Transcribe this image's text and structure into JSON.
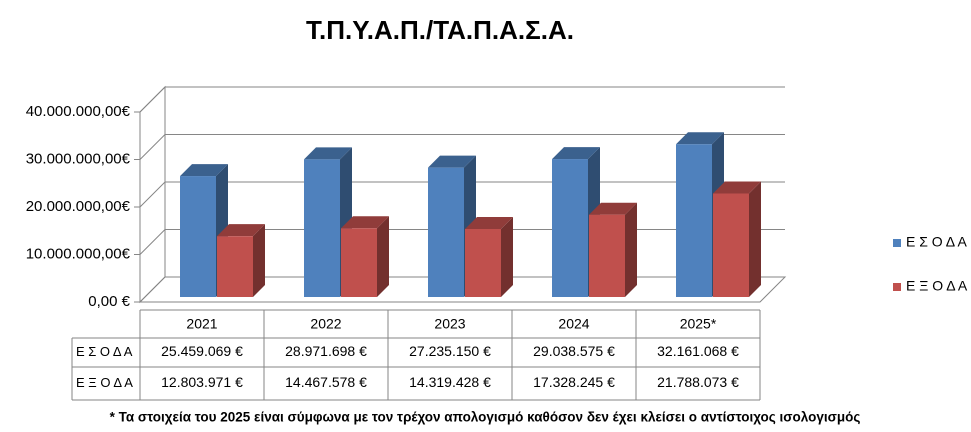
{
  "chart_data": {
    "type": "bar3d",
    "title": "Τ.Π.Υ.Α.Π./ΤΑ.Π.Α.Σ.Α.",
    "categories": [
      "2021",
      "2022",
      "2023",
      "2024",
      "2025*"
    ],
    "series": [
      {
        "name": "Ε Σ Ο Δ Α",
        "color": "#4f81bd",
        "values": [
          25459069,
          28971698,
          27235150,
          29038575,
          32161068
        ],
        "value_labels": [
          "25.459.069 €",
          "28.971.698 €",
          "27.235.150 €",
          "29.038.575 €",
          "32.161.068 €"
        ]
      },
      {
        "name": "Ε Ξ Ο Δ Α",
        "color": "#c0504d",
        "values": [
          12803971,
          14467578,
          14319428,
          17328245,
          21788073
        ],
        "value_labels": [
          "12.803.971 €",
          "14.467.578 €",
          "14.319.428 €",
          "17.328.245 €",
          "21.788.073 €"
        ]
      }
    ],
    "ylim": [
      0,
      40000000
    ],
    "yticks": [
      {
        "value": 0,
        "label": "0,00 €"
      },
      {
        "value": 10000000,
        "label": "10.000.000,00€"
      },
      {
        "value": 20000000,
        "label": "20.000.000,00€"
      },
      {
        "value": 30000000,
        "label": "30.000.000,00€"
      },
      {
        "value": 40000000,
        "label": "40.000.000,00€"
      }
    ],
    "grid": true,
    "legend": "right",
    "note": "* Τα στοιχεία του 2025 είναι σύμφωνα με τον τρέχον απολογισμό καθόσον δεν έχει κλείσει ο αντίστοιχος ισολογισμός"
  }
}
